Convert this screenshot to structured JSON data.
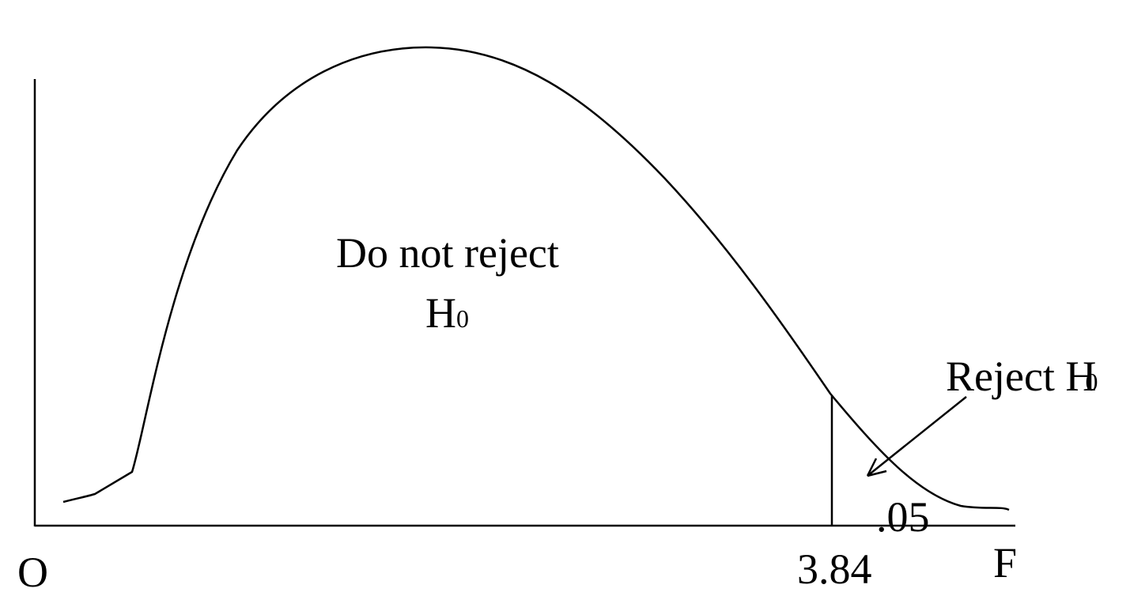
{
  "labels": {
    "accept_region": {
      "text": "Do not reject",
      "symbol": "H",
      "subscript": "0"
    },
    "reject_region": {
      "text": "Reject H",
      "subscript": "0"
    },
    "alpha": ".05",
    "origin": "O",
    "critical_value": "3.84",
    "axis": "F"
  }
}
